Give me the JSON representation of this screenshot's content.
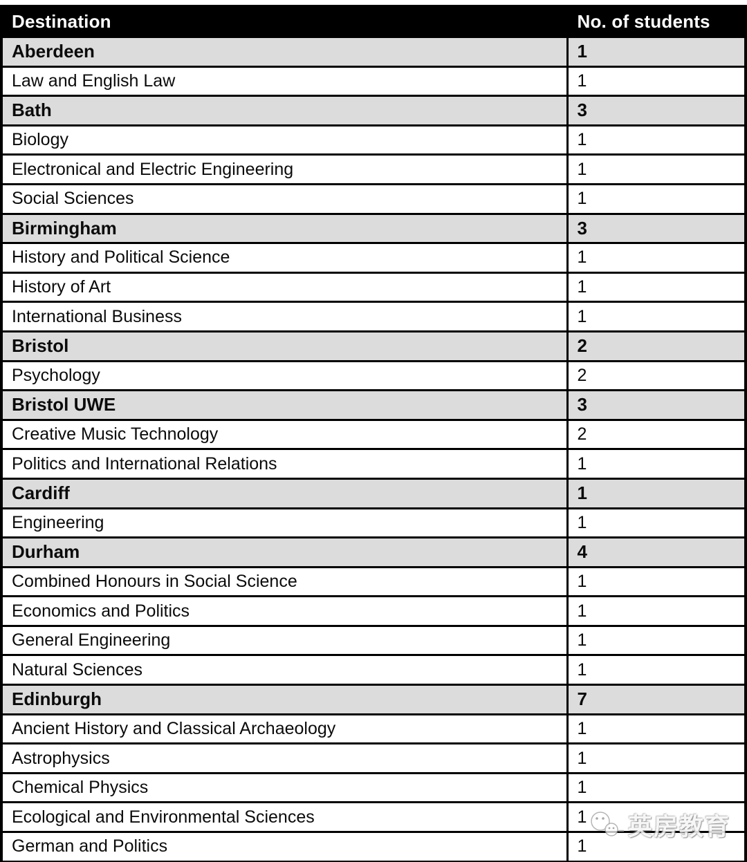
{
  "table": {
    "columns": [
      "Destination",
      "No. of students"
    ],
    "rows": [
      {
        "type": "section",
        "destination": "Aberdeen",
        "students": "1"
      },
      {
        "type": "course",
        "destination": "Law and English Law",
        "students": "1"
      },
      {
        "type": "section",
        "destination": "Bath",
        "students": "3"
      },
      {
        "type": "course",
        "destination": "Biology",
        "students": "1"
      },
      {
        "type": "course",
        "destination": "Electronical and Electric Engineering",
        "students": "1"
      },
      {
        "type": "course",
        "destination": "Social Sciences",
        "students": "1"
      },
      {
        "type": "section",
        "destination": "Birmingham",
        "students": "3"
      },
      {
        "type": "course",
        "destination": "History and Political Science",
        "students": "1"
      },
      {
        "type": "course",
        "destination": "History of Art",
        "students": "1"
      },
      {
        "type": "course",
        "destination": "International Business",
        "students": "1"
      },
      {
        "type": "section",
        "destination": "Bristol",
        "students": "2"
      },
      {
        "type": "course",
        "destination": "Psychology",
        "students": "2"
      },
      {
        "type": "section",
        "destination": "Bristol UWE",
        "students": "3"
      },
      {
        "type": "course",
        "destination": "Creative Music Technology",
        "students": "2"
      },
      {
        "type": "course",
        "destination": "Politics and International Relations",
        "students": "1"
      },
      {
        "type": "section",
        "destination": "Cardiff",
        "students": "1"
      },
      {
        "type": "course",
        "destination": "Engineering",
        "students": "1"
      },
      {
        "type": "section",
        "destination": "Durham",
        "students": "4"
      },
      {
        "type": "course",
        "destination": "Combined Honours in Social Science",
        "students": "1"
      },
      {
        "type": "course",
        "destination": "Economics and Politics",
        "students": "1"
      },
      {
        "type": "course",
        "destination": "General Engineering",
        "students": "1"
      },
      {
        "type": "course",
        "destination": "Natural Sciences",
        "students": "1"
      },
      {
        "type": "section",
        "destination": "Edinburgh",
        "students": "7"
      },
      {
        "type": "course",
        "destination": "Ancient History and Classical Archaeology",
        "students": "1"
      },
      {
        "type": "course",
        "destination": "Astrophysics",
        "students": "1"
      },
      {
        "type": "course",
        "destination": "Chemical Physics",
        "students": "1"
      },
      {
        "type": "course",
        "destination": "Ecological and Environmental Sciences",
        "students": "1"
      },
      {
        "type": "course",
        "destination": "German and Politics",
        "students": "1"
      }
    ]
  },
  "watermark": {
    "text": "英房教育",
    "icon": "ghost-chat-logo"
  },
  "colors": {
    "header_bg": "#000000",
    "header_text": "#ffffff",
    "section_bg": "#dcdcdc",
    "course_bg": "#ffffff",
    "border": "#000000",
    "text": "#0b0b0b"
  }
}
